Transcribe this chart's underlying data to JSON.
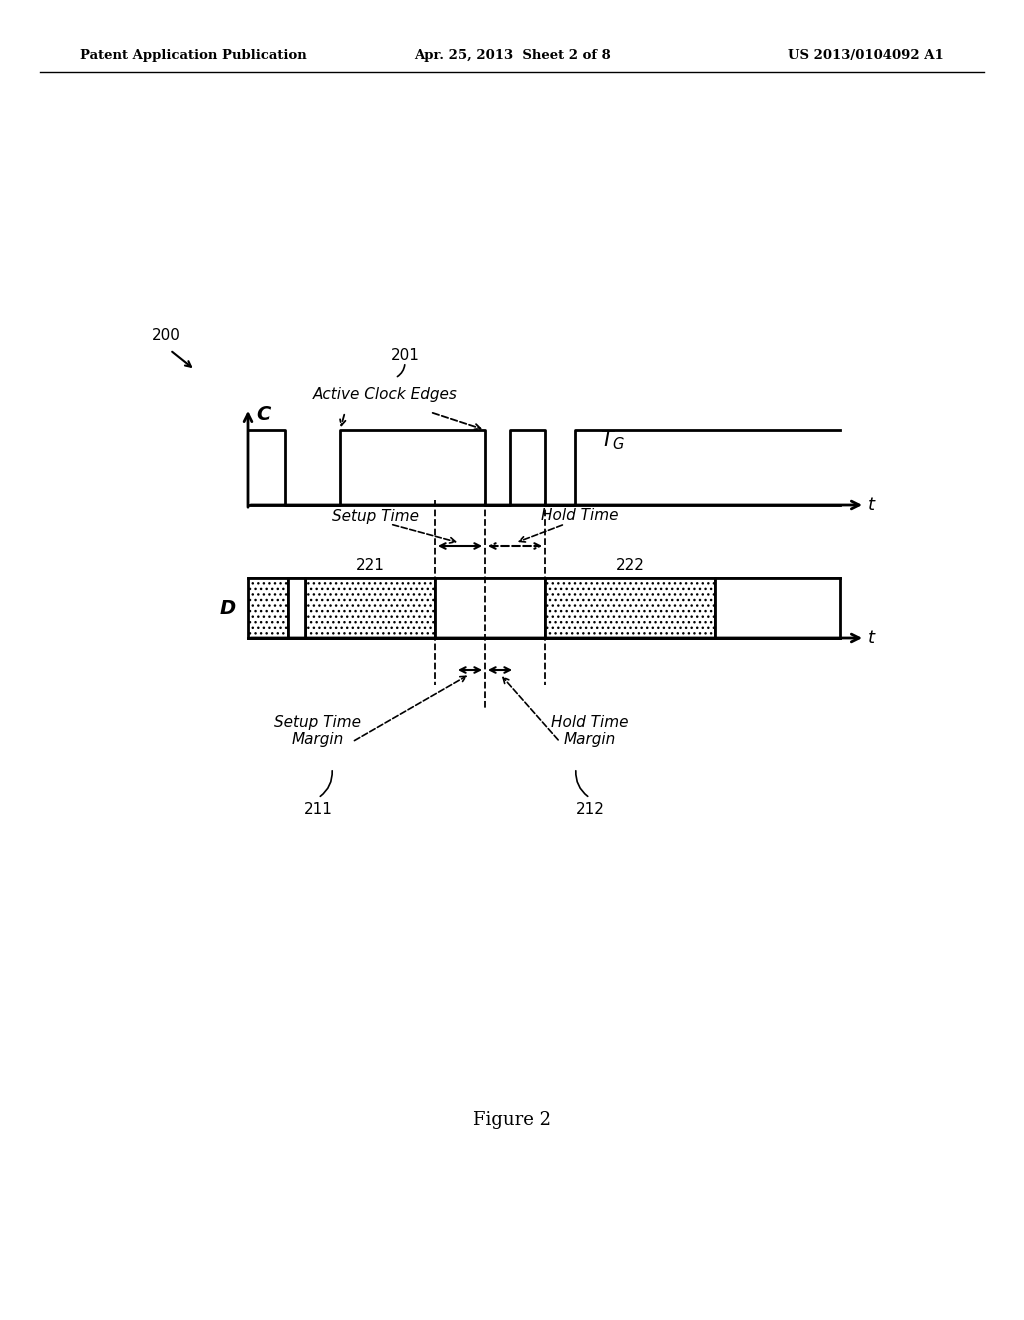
{
  "header_left": "Patent Application Publication",
  "header_center": "Apr. 25, 2013  Sheet 2 of 8",
  "header_right": "US 2013/0104092 A1",
  "figure_label": "Figure 2",
  "label_200": "200",
  "label_201": "201",
  "label_active_clock_edges": "Active Clock Edges",
  "label_C": "C",
  "label_t1": "t",
  "label_D": "D",
  "label_setup_time": "Setup Time",
  "label_hold_time": "Hold Time",
  "label_221": "221",
  "label_222": "222",
  "label_t2": "t",
  "label_setup_time_margin": "Setup Time\nMargin",
  "label_hold_time_margin": "Hold Time\nMargin",
  "label_211": "211",
  "label_212": "212",
  "bg_color": "#ffffff",
  "line_color": "#000000"
}
